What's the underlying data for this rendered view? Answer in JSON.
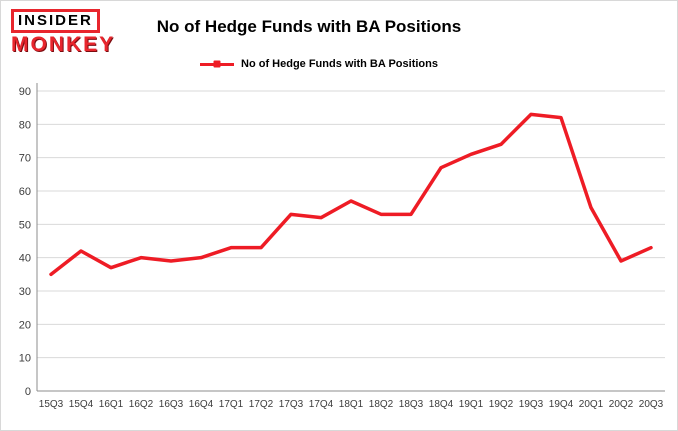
{
  "logo": {
    "line1": "INSIDER",
    "line2": "MONKEY"
  },
  "chart_data": {
    "type": "line",
    "title": "No of Hedge Funds with BA Positions",
    "legend": "No of Hedge Funds with BA Positions",
    "categories": [
      "15Q3",
      "15Q4",
      "16Q1",
      "16Q2",
      "16Q3",
      "16Q4",
      "17Q1",
      "17Q2",
      "17Q3",
      "17Q4",
      "18Q1",
      "18Q2",
      "18Q3",
      "18Q4",
      "19Q1",
      "19Q2",
      "19Q3",
      "19Q4",
      "20Q1",
      "20Q2",
      "20Q3"
    ],
    "values": [
      35,
      42,
      37,
      40,
      39,
      40,
      43,
      43,
      53,
      52,
      57,
      53,
      53,
      67,
      71,
      74,
      83,
      82,
      55,
      39,
      43
    ],
    "xlabel": "",
    "ylabel": "",
    "ylim": [
      0,
      90
    ],
    "yticks": [
      0,
      10,
      20,
      30,
      40,
      50,
      60,
      70,
      80,
      90
    ],
    "grid": true,
    "legend_position": "top-center",
    "line_color": "#ee1c25",
    "grid_color": "#d9d9d9",
    "axis_color": "#8c8c8c"
  }
}
